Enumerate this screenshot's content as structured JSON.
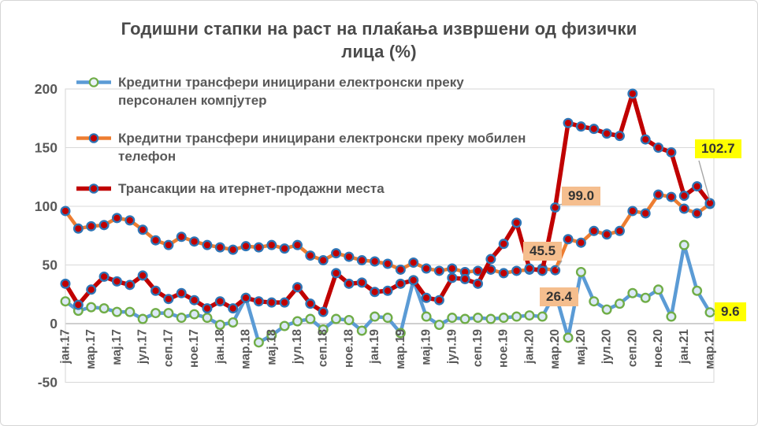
{
  "title": "Годишни стапки на раст на плаќања извршени од физички лица (%)",
  "legend": {
    "items": [
      {
        "id": "pc",
        "label": "Кредитни трансфери иницирани електронски преку персонален компјутер"
      },
      {
        "id": "mobile",
        "label": "Кредитни трансфери иницирани електронски преку мобилен телефон"
      },
      {
        "id": "pos",
        "label": "Трансакции на итернет-продажни места"
      }
    ]
  },
  "colors": {
    "blue_line": "#5B9BD5",
    "orange_line": "#ED7D31",
    "red_line": "#C00000",
    "marker_ring_green": "#70AD47",
    "marker_ring_blue": "#2E75B6",
    "marker_fill_light": "#DCE9F7",
    "marker_fill_dark": "#C00000",
    "label_peach": "#F5BE8E",
    "label_yellow": "#FFFF00",
    "axis_text": "#595959",
    "grid": "#D9D9D9"
  },
  "chart_data": {
    "type": "line",
    "title": "Годишни стапки на раст на плаќања извршени од физички лица (%)",
    "ylabel": "",
    "xlabel": "",
    "ylim": [
      -50,
      200
    ],
    "y_ticks": [
      "200",
      "150",
      "100",
      "50",
      "0",
      "-50"
    ],
    "y_tick_values": [
      200,
      150,
      100,
      50,
      0,
      -50
    ],
    "grid": "horizontal",
    "legend_position": "top-left-overlay",
    "n_points": 51,
    "x_tick_interval": 2,
    "x_tick_labels": [
      "јан.17",
      "мар.17",
      "мај.17",
      "јул.17",
      "сеп.17",
      "ное.17",
      "јан.18",
      "мар.18",
      "мај.18",
      "јул.18",
      "сеп.18",
      "ное.18",
      "јан.19",
      "мар.19",
      "мај.19",
      "јул.19",
      "сеп.19",
      "ное.19",
      "јан.20",
      "мар.20",
      "мај.20",
      "јул.20",
      "сеп.20",
      "ное.20",
      "јан.21",
      "мар.21"
    ],
    "series": [
      {
        "id": "pc",
        "name": "Кредитни трансфери иницирани електронски преку персонален компјутер",
        "line_color": "#5B9BD5",
        "marker_fill": "#DCE9F7",
        "marker_ring": "#70AD47",
        "line_width": 4.5,
        "values": [
          19,
          11,
          14,
          13,
          10,
          10,
          4,
          9,
          9,
          5,
          8,
          5,
          -1,
          1,
          22,
          -16,
          -10,
          -2,
          2,
          4,
          -5,
          4,
          3,
          -6,
          6,
          5,
          -8,
          37,
          6,
          -1,
          5,
          4,
          5,
          4,
          5,
          6,
          7,
          6,
          26.4,
          -12,
          44,
          19,
          12,
          17,
          26,
          22,
          29,
          6,
          67,
          28,
          9.6
        ]
      },
      {
        "id": "mobile",
        "name": "Кредитни трансфери иницирани електронски преку мобилен телефон",
        "line_color": "#ED7D31",
        "marker_fill": "#C00000",
        "marker_ring": "#2E75B6",
        "line_width": 4.5,
        "values": [
          96,
          81,
          83,
          84,
          90,
          88,
          80,
          71,
          67,
          74,
          70,
          67,
          65,
          63,
          66,
          65,
          67,
          64,
          67,
          58,
          54,
          60,
          57,
          54,
          53,
          51,
          46,
          52,
          47,
          45,
          47,
          44,
          45,
          46,
          43,
          45,
          46,
          47,
          45.5,
          72,
          69,
          79,
          76,
          79,
          96,
          94,
          110,
          108,
          98,
          94,
          102
        ]
      },
      {
        "id": "pos",
        "name": "Трансакции на итернет-продажни места",
        "line_color": "#C00000",
        "marker_fill": "#C00000",
        "marker_ring": "#2E75B6",
        "line_width": 5.5,
        "values": [
          34,
          16,
          29,
          40,
          36,
          33,
          41,
          28,
          21,
          26,
          20,
          13,
          19,
          13,
          22,
          19,
          18,
          18,
          31,
          17,
          10,
          43,
          34,
          35,
          27,
          28,
          34,
          37,
          22,
          20,
          39,
          38,
          34,
          55,
          68,
          86,
          47,
          45,
          99,
          171,
          168,
          166,
          162,
          160,
          196,
          157,
          150,
          146,
          109,
          117,
          102.7
        ]
      }
    ],
    "annotations": [
      {
        "text": "99.0",
        "series": "pos",
        "point_index": 38,
        "style": "peach"
      },
      {
        "text": "45.5",
        "series": "mobile",
        "point_index": 38,
        "style": "peach"
      },
      {
        "text": "26.4",
        "series": "pc",
        "point_index": 38,
        "style": "peach"
      },
      {
        "text": "102.7",
        "series": "pos",
        "point_index": 50,
        "style": "yellow"
      },
      {
        "text": "9.6",
        "series": "pc",
        "point_index": 50,
        "style": "yellow"
      }
    ]
  }
}
